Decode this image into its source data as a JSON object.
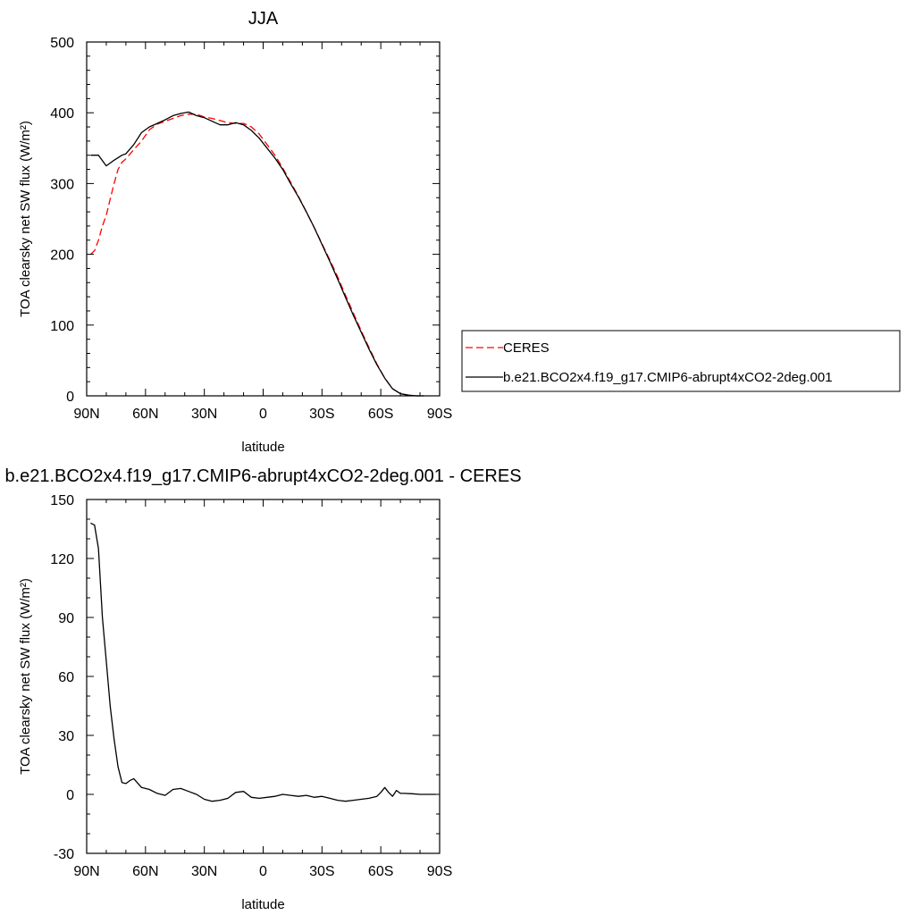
{
  "chart_data": [
    {
      "type": "line",
      "title": "JJA",
      "xlabel": "latitude",
      "ylabel": "TOA clearsky net SW flux (W/m²)",
      "xlim": [
        90,
        -90
      ],
      "ylim": [
        0,
        500
      ],
      "xticks": [
        90,
        60,
        30,
        0,
        -30,
        -60,
        -90
      ],
      "xtick_labels": [
        "90N",
        "60N",
        "30N",
        "0",
        "30S",
        "60S",
        "90S"
      ],
      "yticks": [
        0,
        100,
        200,
        300,
        400,
        500
      ],
      "ytick_labels": [
        "0",
        "100",
        "200",
        "300",
        "400",
        "500"
      ],
      "legend_position": "right",
      "series": [
        {
          "name": "CERES",
          "color": "#ff0000",
          "dash": "dashed",
          "x": [
            88,
            86,
            84,
            82,
            80,
            78,
            76,
            74,
            72,
            70,
            66,
            62,
            58,
            54,
            50,
            46,
            42,
            38,
            34,
            30,
            26,
            22,
            18,
            14,
            10,
            6,
            2,
            -2,
            -6,
            -10,
            -14,
            -18,
            -22,
            -26,
            -30,
            -34,
            -38,
            -42,
            -46,
            -50,
            -54,
            -58,
            -62,
            -66,
            -70,
            -74,
            -78,
            -82
          ],
          "y": [
            200,
            205,
            220,
            240,
            255,
            278,
            300,
            320,
            330,
            335,
            348,
            360,
            376,
            384,
            388,
            392,
            396,
            398,
            398,
            394,
            392,
            389,
            386,
            385,
            385,
            380,
            370,
            355,
            340,
            322,
            302,
            282,
            260,
            238,
            215,
            192,
            168,
            142,
            117,
            92,
            68,
            45,
            25,
            10,
            3,
            1,
            0,
            0
          ]
        },
        {
          "name": "b.e21.BCO2x4.f19_g17.CMIP6-abrupt4xCO2-2deg.001",
          "color": "#000000",
          "dash": "solid",
          "x": [
            88,
            84,
            80,
            76,
            72,
            70,
            66,
            62,
            58,
            54,
            50,
            46,
            42,
            38,
            34,
            30,
            26,
            22,
            18,
            14,
            10,
            6,
            2,
            -2,
            -6,
            -10,
            -14,
            -18,
            -22,
            -26,
            -30,
            -34,
            -38,
            -42,
            -46,
            -50,
            -54,
            -58,
            -62,
            -66,
            -70,
            -74,
            -78,
            -82
          ],
          "y": [
            340,
            340,
            325,
            333,
            340,
            342,
            355,
            372,
            380,
            385,
            390,
            396,
            399,
            401,
            396,
            393,
            388,
            383,
            383,
            386,
            383,
            375,
            364,
            350,
            336,
            320,
            300,
            281,
            260,
            238,
            214,
            190,
            165,
            139,
            114,
            90,
            66,
            44,
            25,
            10,
            3,
            1,
            0,
            0
          ]
        }
      ]
    },
    {
      "type": "line",
      "title": "b.e21.BCO2x4.f19_g17.CMIP6-abrupt4xCO2-2deg.001 - CERES",
      "xlabel": "latitude",
      "ylabel": "TOA clearsky net SW flux (W/m²)",
      "xlim": [
        90,
        -90
      ],
      "ylim": [
        -30,
        150
      ],
      "xticks": [
        90,
        60,
        30,
        0,
        -30,
        -60,
        -90
      ],
      "xtick_labels": [
        "90N",
        "60N",
        "30N",
        "0",
        "30S",
        "60S",
        "90S"
      ],
      "yticks": [
        -30,
        0,
        30,
        60,
        90,
        120,
        150
      ],
      "ytick_labels": [
        "-30",
        "0",
        "30",
        "60",
        "90",
        "120",
        "150"
      ],
      "series": [
        {
          "color": "#000000",
          "dash": "solid",
          "x": [
            88,
            86,
            84,
            82,
            80,
            78,
            76,
            74,
            72,
            70,
            68,
            66,
            62,
            58,
            54,
            50,
            46,
            42,
            38,
            34,
            30,
            26,
            22,
            18,
            14,
            10,
            6,
            2,
            -2,
            -6,
            -10,
            -14,
            -18,
            -22,
            -26,
            -30,
            -34,
            -38,
            -42,
            -46,
            -50,
            -54,
            -58,
            -60,
            -62,
            -64,
            -66,
            -68,
            -70,
            -72,
            -76,
            -80,
            -84,
            -88
          ],
          "y": [
            138,
            137,
            125,
            90,
            68,
            45,
            28,
            14,
            6,
            5.5,
            7,
            8,
            3.5,
            2.5,
            0.5,
            -0.5,
            2.5,
            3,
            1.5,
            0,
            -2.5,
            -3.5,
            -3,
            -2,
            1,
            1.5,
            -1.5,
            -2,
            -1.5,
            -1,
            0,
            -0.5,
            -1,
            -0.5,
            -1.5,
            -1,
            -2,
            -3,
            -3.5,
            -3,
            -2.5,
            -2,
            -1,
            1,
            3.5,
            1,
            -1,
            2,
            0.5,
            0.5,
            0.3,
            0,
            0,
            0
          ]
        }
      ]
    }
  ]
}
